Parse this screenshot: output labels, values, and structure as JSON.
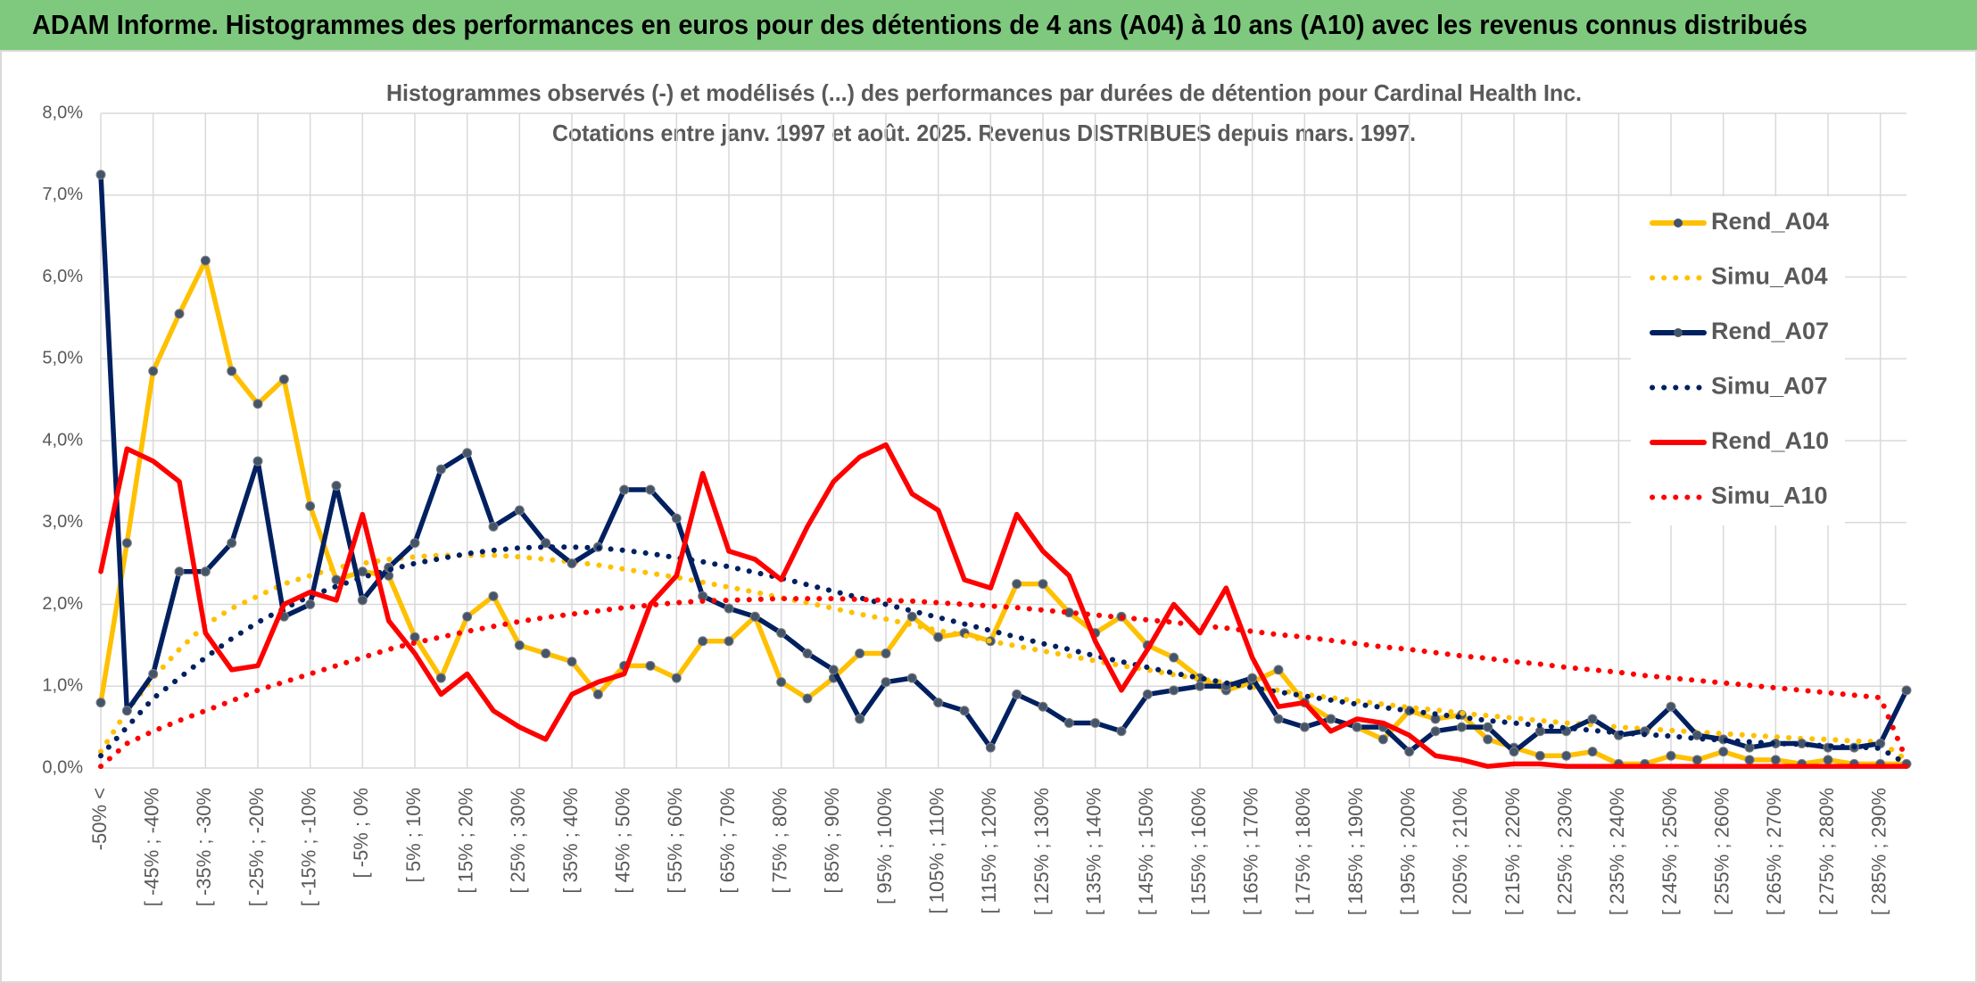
{
  "header": {
    "title": "ADAM Informe. Histogrammes des performances en euros pour des détentions de 4 ans (A04) à 10 ans (A10) avec les revenus connus distribués"
  },
  "chart_data": {
    "type": "line",
    "title": "Histogrammes observés (-) et modélisés (...) des performances par durées de détention pour Cardinal Health Inc.",
    "subtitle": "Cotations entre janv. 1997 et août. 2025. Revenus DISTRIBUES depuis mars. 1997.",
    "grid": true,
    "legend": "right",
    "ylim": [
      0,
      8
    ],
    "yticks": [
      {
        "value": 0,
        "label": "0,0%"
      },
      {
        "value": 1,
        "label": "1,0%"
      },
      {
        "value": 2,
        "label": "2,0%"
      },
      {
        "value": 3,
        "label": "3,0%"
      },
      {
        "value": 4,
        "label": "4,0%"
      },
      {
        "value": 5,
        "label": "5,0%"
      },
      {
        "value": 6,
        "label": "6,0%"
      },
      {
        "value": 7,
        "label": "7,0%"
      },
      {
        "value": 8,
        "label": "8,0%"
      }
    ],
    "categories": [
      "-50% <",
      null,
      "[ -45% ; -40%",
      null,
      "[ -35% ; -30%",
      null,
      "[ -25% ; -20%",
      null,
      "[ -15% ; -10%",
      null,
      "[ -5% ; 0%",
      null,
      "[ 5% ; 10%",
      null,
      "[ 15% ; 20%",
      null,
      "[ 25% ; 30%",
      null,
      "[ 35% ; 40%",
      null,
      "[ 45% ; 50%",
      null,
      "[ 55% ; 60%",
      null,
      "[ 65% ; 70%",
      null,
      "[ 75% ; 80%",
      null,
      "[ 85% ; 90%",
      null,
      "[ 95% ; 100%",
      null,
      "[ 105% ; 110%",
      null,
      "[ 115% ; 120%",
      null,
      "[ 125% ; 130%",
      null,
      "[ 135% ; 140%",
      null,
      "[ 145% ; 150%",
      null,
      "[ 155% ; 160%",
      null,
      "[ 165% ; 170%",
      null,
      "[ 175% ; 180%",
      null,
      "[ 185% ; 190%",
      null,
      "[ 195% ; 200%",
      null,
      "[ 205% ; 210%",
      null,
      "[ 215% ; 220%",
      null,
      "[ 225% ; 230%",
      null,
      "[ 235% ; 240%",
      null,
      "[ 245% ; 250%",
      null,
      "[ 255% ; 260%",
      null,
      "[ 265% ; 270%",
      null,
      "[ 275% ; 280%",
      null,
      "[ 285% ; 290%",
      null
    ],
    "series": [
      {
        "name": "Rend_A04",
        "color": "#ffc000",
        "dash": "solid",
        "marker": true,
        "values": [
          0.8,
          2.75,
          4.85,
          5.55,
          6.2,
          4.85,
          4.45,
          4.75,
          3.2,
          2.3,
          2.4,
          2.35,
          1.6,
          1.1,
          1.85,
          2.1,
          1.5,
          1.4,
          1.3,
          0.9,
          1.25,
          1.25,
          1.1,
          1.55,
          1.55,
          1.85,
          1.05,
          0.85,
          1.1,
          1.4,
          1.4,
          1.85,
          1.6,
          1.65,
          1.55,
          2.25,
          2.25,
          1.9,
          1.65,
          1.85,
          1.5,
          1.35,
          1.1,
          0.95,
          1.05,
          1.2,
          0.8,
          0.6,
          0.5,
          0.35,
          0.7,
          0.6,
          0.65,
          0.35,
          0.25,
          0.15,
          0.15,
          0.2,
          0.05,
          0.05,
          0.15,
          0.1,
          0.2,
          0.1,
          0.1,
          0.05,
          0.1,
          0.05,
          0.05,
          0.05
        ]
      },
      {
        "name": "Simu_A04",
        "color": "#ffc000",
        "dash": "dotted",
        "marker": false,
        "values": [
          0.2,
          0.7,
          1.1,
          1.45,
          1.75,
          1.95,
          2.1,
          2.25,
          2.35,
          2.45,
          2.5,
          2.55,
          2.58,
          2.6,
          2.6,
          2.6,
          2.58,
          2.55,
          2.52,
          2.48,
          2.43,
          2.38,
          2.33,
          2.27,
          2.21,
          2.15,
          2.08,
          2.02,
          1.95,
          1.88,
          1.82,
          1.75,
          1.68,
          1.62,
          1.55,
          1.49,
          1.43,
          1.37,
          1.31,
          1.25,
          1.2,
          1.14,
          1.09,
          1.04,
          0.99,
          0.95,
          0.9,
          0.86,
          0.82,
          0.78,
          0.74,
          0.71,
          0.67,
          0.64,
          0.61,
          0.58,
          0.55,
          0.53,
          0.5,
          0.48,
          0.46,
          0.44,
          0.42,
          0.4,
          0.38,
          0.36,
          0.35,
          0.33,
          0.32,
          0.1
        ]
      },
      {
        "name": "Rend_A07",
        "color": "#002060",
        "dash": "solid",
        "marker": true,
        "values": [
          7.25,
          0.7,
          1.15,
          2.4,
          2.4,
          2.75,
          3.75,
          1.85,
          2.0,
          3.45,
          2.05,
          2.45,
          2.75,
          3.65,
          3.85,
          2.95,
          3.15,
          2.75,
          2.5,
          2.7,
          3.4,
          3.4,
          3.05,
          2.1,
          1.95,
          1.85,
          1.65,
          1.4,
          1.2,
          0.6,
          1.05,
          1.1,
          0.8,
          0.7,
          0.25,
          0.9,
          0.75,
          0.55,
          0.55,
          0.45,
          0.9,
          0.95,
          1.0,
          1.0,
          1.1,
          0.6,
          0.5,
          0.6,
          0.5,
          0.5,
          0.2,
          0.45,
          0.5,
          0.5,
          0.2,
          0.45,
          0.45,
          0.6,
          0.4,
          0.45,
          0.75,
          0.4,
          0.35,
          0.25,
          0.3,
          0.3,
          0.25,
          0.25,
          0.3,
          0.95
        ]
      },
      {
        "name": "Simu_A07",
        "color": "#002060",
        "dash": "dotted",
        "marker": false,
        "values": [
          0.15,
          0.5,
          0.85,
          1.1,
          1.35,
          1.58,
          1.78,
          1.95,
          2.1,
          2.22,
          2.33,
          2.42,
          2.5,
          2.56,
          2.62,
          2.66,
          2.69,
          2.7,
          2.7,
          2.69,
          2.66,
          2.62,
          2.57,
          2.52,
          2.46,
          2.39,
          2.32,
          2.24,
          2.16,
          2.08,
          2.0,
          1.92,
          1.84,
          1.76,
          1.68,
          1.6,
          1.52,
          1.45,
          1.37,
          1.3,
          1.23,
          1.16,
          1.1,
          1.04,
          0.98,
          0.93,
          0.88,
          0.83,
          0.78,
          0.74,
          0.7,
          0.66,
          0.62,
          0.58,
          0.55,
          0.52,
          0.49,
          0.46,
          0.43,
          0.41,
          0.39,
          0.36,
          0.34,
          0.32,
          0.3,
          0.29,
          0.27,
          0.26,
          0.24,
          0.05
        ]
      },
      {
        "name": "Rend_A10",
        "color": "#ff0000",
        "dash": "solid",
        "marker": false,
        "values": [
          2.4,
          3.9,
          3.75,
          3.5,
          1.65,
          1.2,
          1.25,
          2.0,
          2.15,
          2.05,
          3.1,
          1.8,
          1.4,
          0.9,
          1.15,
          0.7,
          0.5,
          0.35,
          0.9,
          1.05,
          1.15,
          2.0,
          2.35,
          3.6,
          2.65,
          2.55,
          2.3,
          2.95,
          3.5,
          3.8,
          3.95,
          3.35,
          3.15,
          2.3,
          2.2,
          3.1,
          2.65,
          2.35,
          1.55,
          0.95,
          1.45,
          2.0,
          1.65,
          2.2,
          1.35,
          0.75,
          0.8,
          0.45,
          0.6,
          0.55,
          0.4,
          0.15,
          0.1,
          0.02,
          0.05,
          0.05,
          0.02,
          0.02,
          0.02,
          0.02,
          0.02,
          0.02,
          0.02,
          0.02,
          0.02,
          0.02,
          0.02,
          0.02,
          0.02,
          0.02
        ]
      },
      {
        "name": "Simu_A10",
        "color": "#ff0000",
        "dash": "dotted",
        "marker": false,
        "values": [
          0.02,
          0.3,
          0.45,
          0.58,
          0.7,
          0.82,
          0.95,
          1.05,
          1.15,
          1.25,
          1.35,
          1.45,
          1.53,
          1.6,
          1.67,
          1.73,
          1.79,
          1.84,
          1.88,
          1.92,
          1.96,
          1.99,
          2.02,
          2.04,
          2.05,
          2.06,
          2.07,
          2.07,
          2.07,
          2.06,
          2.05,
          2.04,
          2.02,
          2.0,
          1.98,
          1.96,
          1.93,
          1.9,
          1.87,
          1.84,
          1.81,
          1.78,
          1.74,
          1.71,
          1.67,
          1.63,
          1.6,
          1.56,
          1.52,
          1.48,
          1.45,
          1.41,
          1.37,
          1.34,
          1.3,
          1.27,
          1.23,
          1.2,
          1.17,
          1.13,
          1.1,
          1.07,
          1.04,
          1.01,
          0.98,
          0.95,
          0.92,
          0.89,
          0.86,
          0.1
        ]
      }
    ]
  }
}
